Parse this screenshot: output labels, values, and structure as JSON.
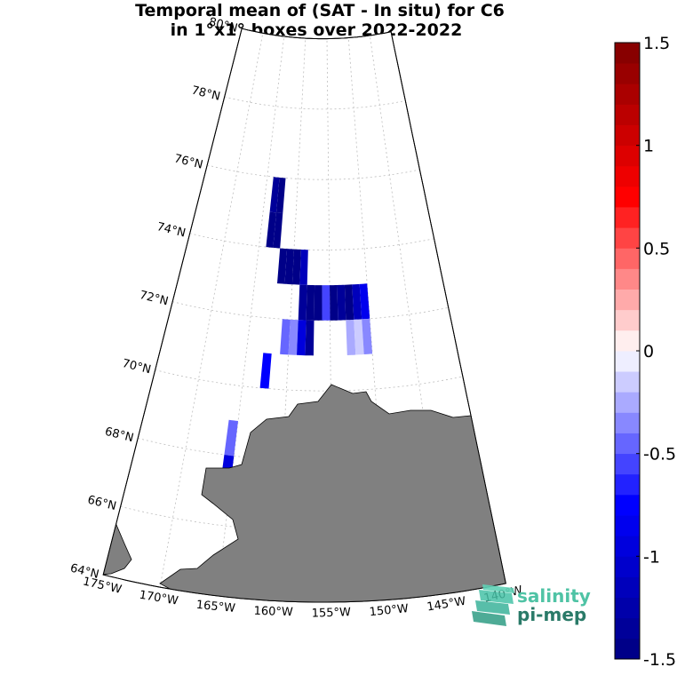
{
  "title": {
    "line1": "Temporal mean of (SAT - In situ) for C6",
    "line2": "in 1°x1° boxes over 2022-2022"
  },
  "latitude_labels": [
    "64°N",
    "66°N",
    "68°N",
    "70°N",
    "72°N",
    "74°N",
    "76°N",
    "78°N",
    "80°N"
  ],
  "longitude_labels": [
    "175°W",
    "170°W",
    "165°W",
    "160°W",
    "155°W",
    "150°W",
    "145°W",
    "140°W"
  ],
  "colorbar": {
    "min": -1.5,
    "max": 1.5,
    "tick_labels": [
      "1.5",
      "1",
      "0.5",
      "0",
      "-0.5",
      "-1",
      "-1.5"
    ],
    "tick_values": [
      1.5,
      1,
      0.5,
      0,
      -0.5,
      -1,
      -1.5
    ],
    "low_color": "#000080",
    "zero_color": "#ffffff",
    "high_color": "#800000"
  },
  "colors": {
    "land": "#808080",
    "grid": "#bdbdbd"
  },
  "logo": {
    "line1": "salinity",
    "line2": "pi-mep"
  },
  "chart_data": {
    "type": "heatmap",
    "units": "SAT - In situ",
    "cells": [
      {
        "lon": -163.5,
        "lat": 75.5,
        "value": -1.3
      },
      {
        "lon": -162.5,
        "lat": 75.5,
        "value": -1.5
      },
      {
        "lon": -163.5,
        "lat": 74.5,
        "value": -1.45
      },
      {
        "lon": -162.5,
        "lat": 74.5,
        "value": -1.45
      },
      {
        "lon": -161.5,
        "lat": 73.5,
        "value": -1.5
      },
      {
        "lon": -160.5,
        "lat": 73.5,
        "value": -1.5
      },
      {
        "lon": -159.5,
        "lat": 73.5,
        "value": -1.5
      },
      {
        "lon": -158.5,
        "lat": 73.5,
        "value": -1.2
      },
      {
        "lon": -158.5,
        "lat": 72.5,
        "value": -1.3
      },
      {
        "lon": -157.5,
        "lat": 72.5,
        "value": -1.5
      },
      {
        "lon": -156.5,
        "lat": 72.5,
        "value": -1.5
      },
      {
        "lon": -155.5,
        "lat": 72.5,
        "value": -0.6
      },
      {
        "lon": -154.5,
        "lat": 72.5,
        "value": -1.5
      },
      {
        "lon": -153.5,
        "lat": 72.5,
        "value": -1.4
      },
      {
        "lon": -152.5,
        "lat": 72.5,
        "value": -1.5
      },
      {
        "lon": -151.5,
        "lat": 72.5,
        "value": -1.2
      },
      {
        "lon": -150.5,
        "lat": 72.5,
        "value": -0.8
      },
      {
        "lon": -160.5,
        "lat": 71.5,
        "value": -0.5
      },
      {
        "lon": -159.5,
        "lat": 71.5,
        "value": -0.3
      },
      {
        "lon": -158.5,
        "lat": 71.5,
        "value": -0.9
      },
      {
        "lon": -157.5,
        "lat": 71.5,
        "value": -1.3
      },
      {
        "lon": -152.5,
        "lat": 71.5,
        "value": -0.25
      },
      {
        "lon": -151.5,
        "lat": 71.5,
        "value": -0.15
      },
      {
        "lon": -150.5,
        "lat": 71.5,
        "value": -0.4
      },
      {
        "lon": -162.5,
        "lat": 70.5,
        "value": -0.75
      },
      {
        "lon": -165.5,
        "lat": 68.5,
        "value": -0.45
      },
      {
        "lon": -165.5,
        "lat": 67.5,
        "value": -0.9
      }
    ]
  }
}
